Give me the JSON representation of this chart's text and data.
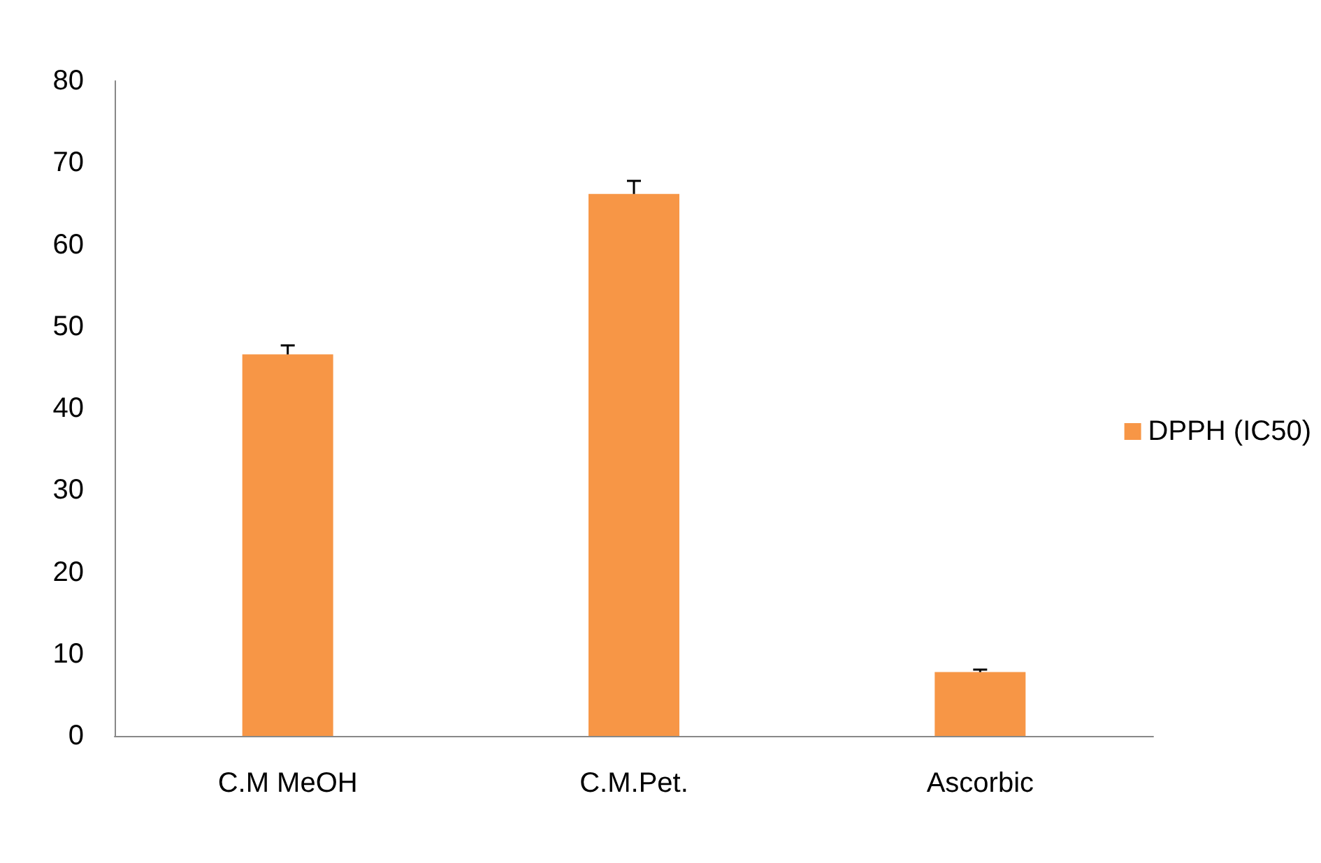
{
  "chart_data": {
    "type": "bar",
    "categories": [
      "C.M MeOH",
      "C.M.Pet.",
      "Ascorbic"
    ],
    "series": [
      {
        "name": "DPPH (IC50)",
        "color": "#f79646",
        "values": [
          46.6,
          66.2,
          7.8
        ],
        "errors": [
          [
            46.6,
            47.7
          ],
          [
            66.2,
            67.8
          ],
          [
            7.8,
            8.1
          ]
        ]
      }
    ],
    "ylim": [
      0,
      80
    ],
    "yticks": [
      0,
      10,
      20,
      30,
      40,
      50,
      60,
      70,
      80
    ],
    "grid": false,
    "legend": "right"
  }
}
